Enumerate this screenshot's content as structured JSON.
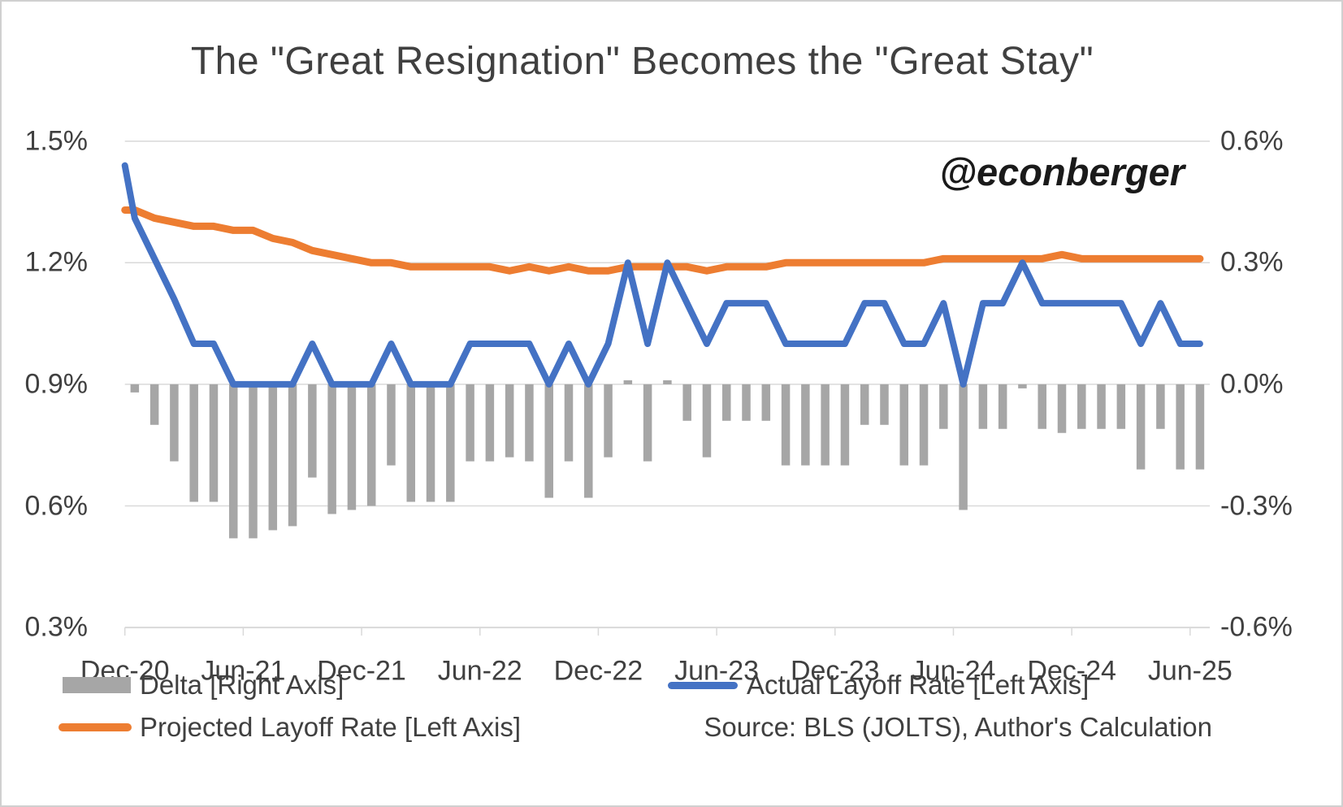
{
  "title": "The \"Great Resignation\" Becomes the \"Great Stay\"",
  "watermark": "@econberger",
  "source_note": "Source: BLS (JOLTS), Author's Calculation",
  "legend": {
    "delta_label": "Delta [Right Axis]",
    "actual_label": "Actual Layoff Rate [Left Axis]",
    "projected_label": "Projected Layoff Rate [Left Axis]"
  },
  "colors": {
    "actual_line": "#4472C4",
    "projected_line": "#ED7D31",
    "delta_bar": "#A6A6A6",
    "gridline": "#D9D9D9",
    "text": "#404040"
  },
  "chart_data": {
    "type": "combo",
    "title": "The \"Great Resignation\" Becomes the \"Great Stay\"",
    "x_tick_labels": [
      "Dec-20",
      "Jun-21",
      "Dec-21",
      "Jun-22",
      "Dec-22",
      "Jun-23",
      "Dec-23",
      "Jun-24",
      "Dec-24",
      "Jun-25"
    ],
    "left_axis": {
      "ticks": [
        "1.5%",
        "1.2%",
        "0.9%",
        "0.6%",
        "0.3%"
      ],
      "min": 0.3,
      "max": 1.5,
      "label_format": "percent"
    },
    "right_axis": {
      "ticks": [
        "0.6%",
        "0.3%",
        "0.0%",
        "-0.3%",
        "-0.6%"
      ],
      "min": -0.6,
      "max": 0.6,
      "label_format": "percent"
    },
    "grid": true,
    "legend_position": "bottom",
    "months": [
      "Dec-20",
      "Jan-21",
      "Feb-21",
      "Mar-21",
      "Apr-21",
      "May-21",
      "Jun-21",
      "Jul-21",
      "Aug-21",
      "Sep-21",
      "Oct-21",
      "Nov-21",
      "Dec-21",
      "Jan-22",
      "Feb-22",
      "Mar-22",
      "Apr-22",
      "May-22",
      "Jun-22",
      "Jul-22",
      "Aug-22",
      "Sep-22",
      "Oct-22",
      "Nov-22",
      "Dec-22",
      "Jan-23",
      "Feb-23",
      "Mar-23",
      "Apr-23",
      "May-23",
      "Jun-23",
      "Jul-23",
      "Aug-23",
      "Sep-23",
      "Oct-23",
      "Nov-23",
      "Dec-23",
      "Jan-24",
      "Feb-24",
      "Mar-24",
      "Apr-24",
      "May-24",
      "Jun-24",
      "Jul-24",
      "Aug-24",
      "Sep-24",
      "Oct-24",
      "Nov-24",
      "Dec-24",
      "Jan-25",
      "Feb-25",
      "Mar-25",
      "Apr-25",
      "May-25",
      "Jun-25"
    ],
    "series": [
      {
        "name": "Actual Layoff Rate [Left Axis]",
        "type": "line",
        "axis": "left",
        "color": "#4472C4",
        "edge_lead_value": 1.44,
        "values": [
          1.31,
          1.21,
          1.11,
          1.0,
          1.0,
          0.9,
          0.9,
          0.9,
          0.9,
          1.0,
          0.9,
          0.9,
          0.9,
          1.0,
          0.9,
          0.9,
          0.9,
          1.0,
          1.0,
          1.0,
          1.0,
          0.9,
          1.0,
          0.9,
          1.0,
          1.2,
          1.0,
          1.2,
          1.1,
          1.0,
          1.1,
          1.1,
          1.1,
          1.0,
          1.0,
          1.0,
          1.0,
          1.1,
          1.1,
          1.0,
          1.0,
          1.1,
          0.9,
          1.1,
          1.1,
          1.2,
          1.1,
          1.1,
          1.1,
          1.1,
          1.1,
          1.0,
          1.1,
          1.0,
          1.0
        ]
      },
      {
        "name": "Projected Layoff Rate [Left Axis]",
        "type": "line",
        "axis": "left",
        "color": "#ED7D31",
        "edge_lead_value": 1.33,
        "values": [
          1.33,
          1.31,
          1.3,
          1.29,
          1.29,
          1.28,
          1.28,
          1.26,
          1.25,
          1.23,
          1.22,
          1.21,
          1.2,
          1.2,
          1.19,
          1.19,
          1.19,
          1.19,
          1.19,
          1.18,
          1.19,
          1.18,
          1.19,
          1.18,
          1.18,
          1.19,
          1.19,
          1.19,
          1.19,
          1.18,
          1.19,
          1.19,
          1.19,
          1.2,
          1.2,
          1.2,
          1.2,
          1.2,
          1.2,
          1.2,
          1.2,
          1.21,
          1.21,
          1.21,
          1.21,
          1.21,
          1.21,
          1.22,
          1.21,
          1.21,
          1.21,
          1.21,
          1.21,
          1.21,
          1.21
        ]
      },
      {
        "name": "Delta [Right Axis]",
        "type": "bar",
        "axis": "right",
        "color": "#A6A6A6",
        "values": [
          -0.02,
          -0.1,
          -0.19,
          -0.29,
          -0.29,
          -0.38,
          -0.38,
          -0.36,
          -0.35,
          -0.23,
          -0.32,
          -0.31,
          -0.3,
          -0.2,
          -0.29,
          -0.29,
          -0.29,
          -0.19,
          -0.19,
          -0.18,
          -0.19,
          -0.28,
          -0.19,
          -0.28,
          -0.18,
          0.01,
          -0.19,
          0.01,
          -0.09,
          -0.18,
          -0.09,
          -0.09,
          -0.09,
          -0.2,
          -0.2,
          -0.2,
          -0.2,
          -0.1,
          -0.1,
          -0.2,
          -0.2,
          -0.11,
          -0.31,
          -0.11,
          -0.11,
          -0.01,
          -0.11,
          -0.12,
          -0.11,
          -0.11,
          -0.11,
          -0.21,
          -0.11,
          -0.21,
          -0.21
        ]
      }
    ]
  }
}
